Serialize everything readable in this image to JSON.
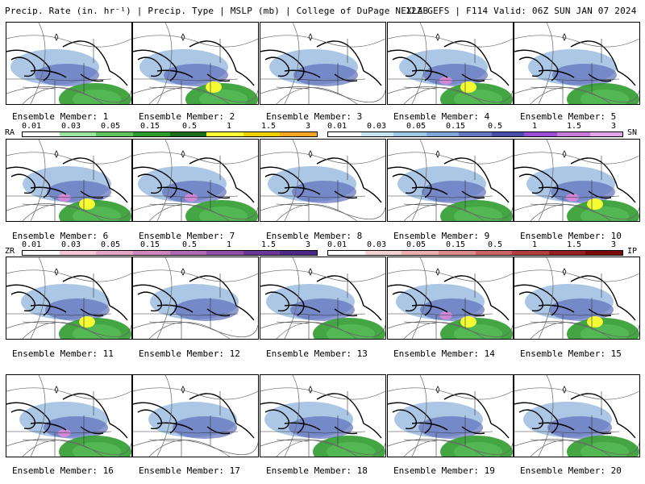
{
  "header": {
    "left": "Precip. Rate (in. hr⁻¹) | Precip. Type | MSLP (mb) | College of DuPage NEXLAB",
    "right": "12Z GEFS | F114 Valid: 06Z SUN JAN 07 2024"
  },
  "members": [
    "Ensemble Member: 1",
    "Ensemble Member: 2",
    "Ensemble Member: 3",
    "Ensemble Member: 4",
    "Ensemble Member: 5",
    "Ensemble Member: 6",
    "Ensemble Member: 7",
    "Ensemble Member: 8",
    "Ensemble Member: 9",
    "Ensemble Member: 10",
    "Ensemble Member: 11",
    "Ensemble Member: 12",
    "Ensemble Member: 13",
    "Ensemble Member: 14",
    "Ensemble Member: 15",
    "Ensemble Member: 16",
    "Ensemble Member: 17",
    "Ensemble Member: 18",
    "Ensemble Member: 19",
    "Ensemble Member: 20"
  ],
  "legends": {
    "ra": {
      "label": "RA",
      "ticks": [
        "0.01",
        "0.03",
        "0.05",
        "0.15",
        "0.5",
        "1",
        "1.5",
        "3"
      ],
      "colors": [
        "#ffffff",
        "#9be49b",
        "#5fc45f",
        "#2f9c2f",
        "#1a6e1a",
        "#ffff33",
        "#f0d000",
        "#f5a623"
      ]
    },
    "sn": {
      "label": "SN",
      "ticks": [
        "0.01",
        "0.03",
        "0.05",
        "0.15",
        "0.5",
        "1",
        "1.5",
        "3"
      ],
      "colors": [
        "#ffffff",
        "#c6e3f2",
        "#9fc8e6",
        "#7fa6d8",
        "#6378c0",
        "#4a4eab",
        "#9b4fd0",
        "#c77ad8",
        "#e2a6e8"
      ]
    },
    "zr": {
      "label": "ZR",
      "ticks": [
        "0.01",
        "0.03",
        "0.05",
        "0.15",
        "0.5",
        "1",
        "1.5",
        "3"
      ],
      "colors": [
        "#ffffff",
        "#f7c6d8",
        "#e6a6c8",
        "#cf86bd",
        "#b06ab4",
        "#8f4ea8",
        "#6b3796",
        "#4c2788"
      ]
    },
    "ip": {
      "label": "IP",
      "ticks": [
        "0.01",
        "0.03",
        "0.05",
        "0.15",
        "0.5",
        "1",
        "1.5",
        "3"
      ],
      "colors": [
        "#ffffff",
        "#f6d2d2",
        "#eab0b0",
        "#d98a8a",
        "#c86464",
        "#b04040",
        "#962020",
        "#7a0a0a"
      ]
    }
  }
}
